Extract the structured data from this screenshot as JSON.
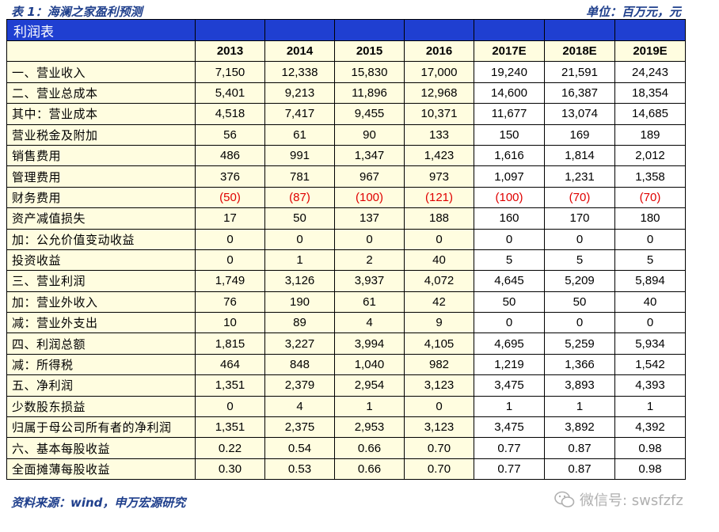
{
  "caption": {
    "left": "表 1：海澜之家盈利预测",
    "right": "单位：百万元，元"
  },
  "table": {
    "title": "利润表",
    "years": [
      "2013",
      "2014",
      "2015",
      "2016",
      "2017E",
      "2018E",
      "2019E"
    ],
    "rows": [
      {
        "label": "一、营业收入",
        "values": [
          "7,150",
          "12,338",
          "15,830",
          "17,000",
          "19,240",
          "21,591",
          "24,243"
        ]
      },
      {
        "label": "二、营业总成本",
        "values": [
          "5,401",
          "9,213",
          "11,896",
          "12,968",
          "14,600",
          "16,387",
          "18,354"
        ]
      },
      {
        "label": "其中：营业成本",
        "values": [
          "4,518",
          "7,417",
          "9,455",
          "10,371",
          "11,677",
          "13,074",
          "14,685"
        ]
      },
      {
        "label": "营业税金及附加",
        "values": [
          "56",
          "61",
          "90",
          "133",
          "150",
          "169",
          "189"
        ]
      },
      {
        "label": "销售费用",
        "values": [
          "486",
          "991",
          "1,347",
          "1,423",
          "1,616",
          "1,814",
          "2,012"
        ]
      },
      {
        "label": "管理费用",
        "values": [
          "376",
          "781",
          "967",
          "973",
          "1,097",
          "1,231",
          "1,358"
        ]
      },
      {
        "label": "财务费用",
        "values": [
          "(50)",
          "(87)",
          "(100)",
          "(121)",
          "(100)",
          "(70)",
          "(70)"
        ],
        "negative": true
      },
      {
        "label": "资产减值损失",
        "values": [
          "17",
          "50",
          "137",
          "188",
          "160",
          "170",
          "180"
        ]
      },
      {
        "label": "加：公允价值变动收益",
        "values": [
          "0",
          "0",
          "0",
          "0",
          "0",
          "0",
          "0"
        ]
      },
      {
        "label": "投资收益",
        "values": [
          "0",
          "1",
          "2",
          "40",
          "5",
          "5",
          "5"
        ]
      },
      {
        "label": "三、营业利润",
        "values": [
          "1,749",
          "3,126",
          "3,937",
          "4,072",
          "4,645",
          "5,209",
          "5,894"
        ]
      },
      {
        "label": "加：营业外收入",
        "values": [
          "76",
          "190",
          "61",
          "42",
          "50",
          "50",
          "40"
        ]
      },
      {
        "label": "减：营业外支出",
        "values": [
          "10",
          "89",
          "4",
          "9",
          "0",
          "0",
          "0"
        ]
      },
      {
        "label": "四、利润总额",
        "values": [
          "1,815",
          "3,227",
          "3,994",
          "4,105",
          "4,695",
          "5,259",
          "5,934"
        ]
      },
      {
        "label": "减：所得税",
        "values": [
          "464",
          "848",
          "1,040",
          "982",
          "1,219",
          "1,366",
          "1,542"
        ]
      },
      {
        "label": "五、净利润",
        "values": [
          "1,351",
          "2,379",
          "2,954",
          "3,123",
          "3,475",
          "3,893",
          "4,393"
        ]
      },
      {
        "label": "少数股东损益",
        "values": [
          "0",
          "4",
          "1",
          "0",
          "1",
          "1",
          "1"
        ]
      },
      {
        "label": "归属于母公司所有者的净利润",
        "values": [
          "1,351",
          "2,375",
          "2,953",
          "3,123",
          "3,475",
          "3,892",
          "4,392"
        ]
      },
      {
        "label": "六、基本每股收益",
        "values": [
          "0.22",
          "0.54",
          "0.66",
          "0.70",
          "0.77",
          "0.87",
          "0.98"
        ]
      },
      {
        "label": "全面摊薄每股收益",
        "values": [
          "0.30",
          "0.53",
          "0.66",
          "0.70",
          "0.77",
          "0.87",
          "0.98"
        ]
      }
    ]
  },
  "footer": {
    "source": "资料来源：wind，申万宏源研究"
  },
  "watermark": {
    "text": "微信号: swsfzfz",
    "icon": "wechat-icon"
  },
  "colors": {
    "title_bg": "#1f3fd1",
    "history_bg": "#fffde0",
    "negative": "#e00000",
    "caption": "#1f3f8c"
  }
}
